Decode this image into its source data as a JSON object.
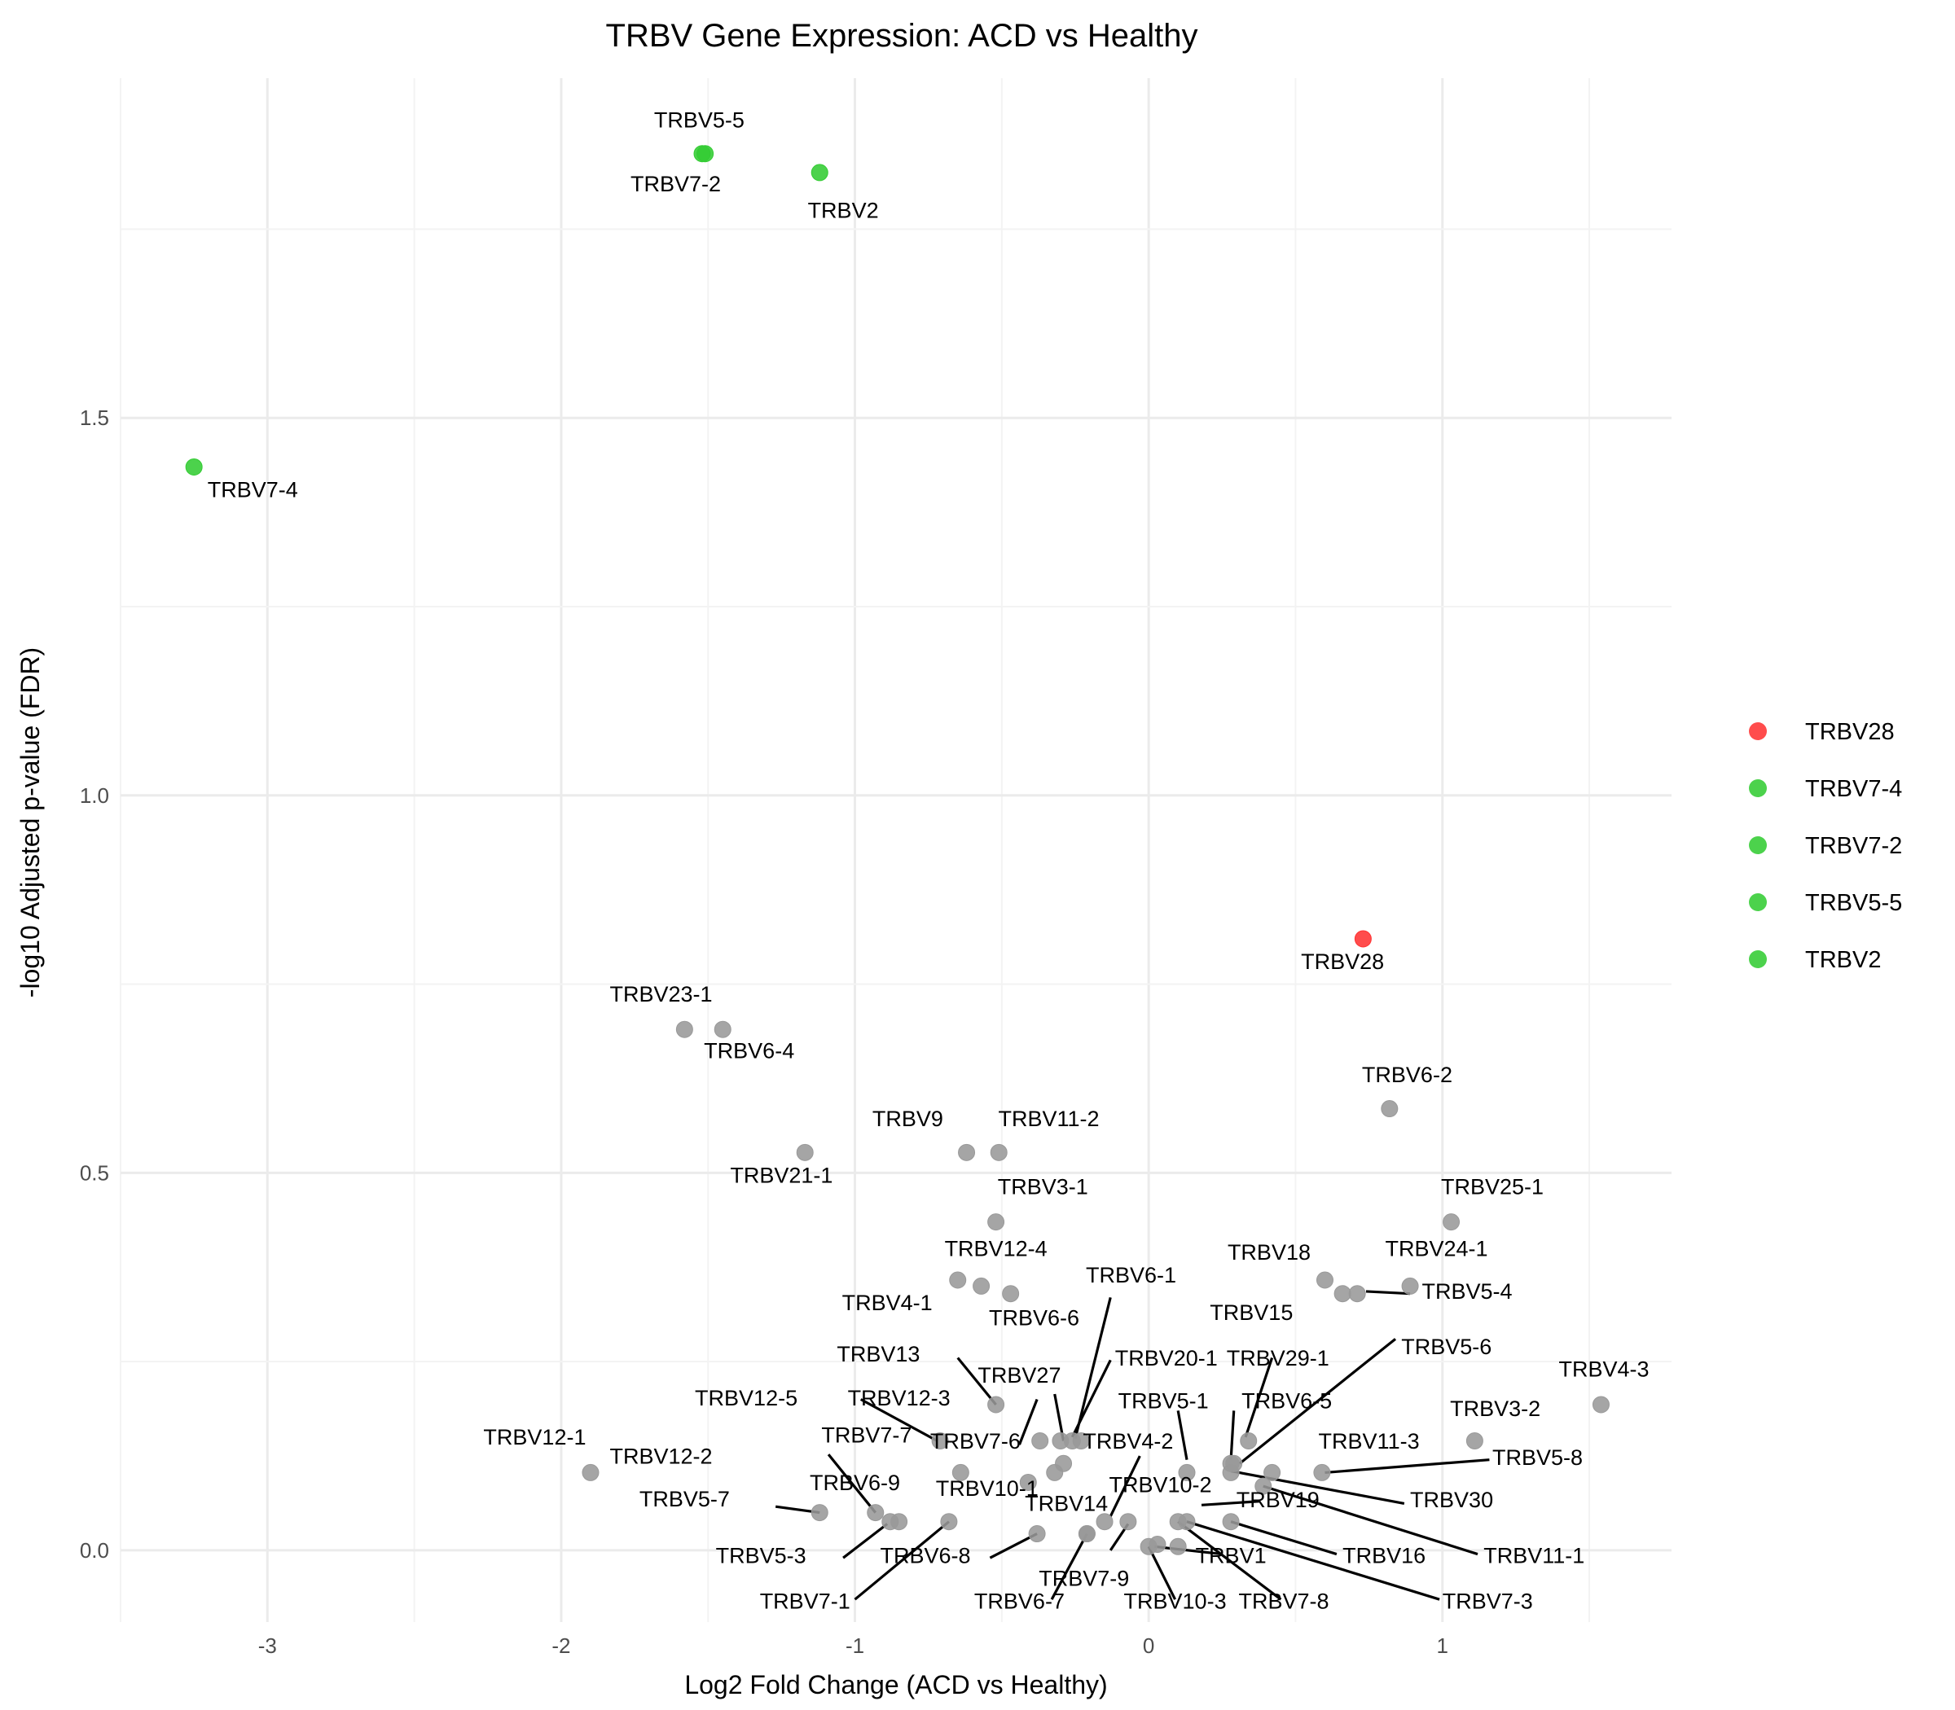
{
  "chart_data": {
    "type": "scatter",
    "title": "TRBV Gene Expression: ACD vs Healthy",
    "xlabel": "Log2 Fold Change (ACD vs Healthy)",
    "ylabel": "-log10 Adjusted p-value (FDR)",
    "xlim": [
      -3.5,
      1.78
    ],
    "ylim": [
      -0.095,
      1.95
    ],
    "xticks": [
      -3,
      -2,
      -1,
      0,
      1
    ],
    "yticks": [
      0.0,
      0.5,
      1.0,
      1.5
    ],
    "grid": true,
    "legend_position": "right",
    "colors": {
      "grey": "#999999",
      "green": "#33cc33",
      "red": "#ff3333",
      "line": "#000000"
    },
    "legend": [
      {
        "label": "TRBV28",
        "color": "#ff3333"
      },
      {
        "label": "TRBV7-4",
        "color": "#33cc33"
      },
      {
        "label": "TRBV7-2",
        "color": "#33cc33"
      },
      {
        "label": "TRBV5-5",
        "color": "#33cc33"
      },
      {
        "label": "TRBV2",
        "color": "#33cc33"
      }
    ],
    "points": [
      {
        "gene": "TRBV5-5",
        "x": -1.52,
        "y": 1.85,
        "group": "green"
      },
      {
        "gene": "TRBV7-2",
        "x": -1.51,
        "y": 1.85,
        "group": "green"
      },
      {
        "gene": "TRBV2",
        "x": -1.12,
        "y": 1.825,
        "group": "green"
      },
      {
        "gene": "TRBV7-4",
        "x": -3.25,
        "y": 1.435,
        "group": "green"
      },
      {
        "gene": "TRBV28",
        "x": 0.73,
        "y": 0.81,
        "group": "red"
      },
      {
        "gene": "TRBV23-1",
        "x": -1.58,
        "y": 0.69,
        "group": "grey"
      },
      {
        "gene": "TRBV6-4",
        "x": -1.45,
        "y": 0.69,
        "group": "grey"
      },
      {
        "gene": "TRBV6-2",
        "x": 0.82,
        "y": 0.585,
        "group": "grey"
      },
      {
        "gene": "TRBV21-1",
        "x": -1.17,
        "y": 0.527,
        "group": "grey"
      },
      {
        "gene": "TRBV9",
        "x": -0.62,
        "y": 0.527,
        "group": "grey"
      },
      {
        "gene": "TRBV11-2",
        "x": -0.51,
        "y": 0.527,
        "group": "grey"
      },
      {
        "gene": "TRBV3-1",
        "x": -0.52,
        "y": 0.435,
        "group": "grey"
      },
      {
        "gene": "TRBV25-1",
        "x": 1.03,
        "y": 0.435,
        "group": "grey"
      },
      {
        "gene": "TRBV12-4",
        "x": -0.57,
        "y": 0.35,
        "group": "grey"
      },
      {
        "gene": "TRBV4-1",
        "x": -0.65,
        "y": 0.358,
        "group": "grey"
      },
      {
        "gene": "TRBV6-6",
        "x": -0.47,
        "y": 0.34,
        "group": "grey"
      },
      {
        "gene": "TRBV18",
        "x": 0.6,
        "y": 0.358,
        "group": "grey"
      },
      {
        "gene": "TRBV15",
        "x": 0.66,
        "y": 0.34,
        "group": "grey"
      },
      {
        "gene": "TRBV24-1",
        "x": 0.71,
        "y": 0.34,
        "group": "grey"
      },
      {
        "gene": "TRBV5-4",
        "x": 0.89,
        "y": 0.35,
        "group": "grey"
      },
      {
        "gene": "TRBV4-3",
        "x": 1.54,
        "y": 0.193,
        "group": "grey"
      },
      {
        "gene": "TRBV13",
        "x": -0.52,
        "y": 0.193,
        "group": "grey"
      },
      {
        "gene": "TRBV3-2",
        "x": 1.11,
        "y": 0.145,
        "group": "grey"
      },
      {
        "gene": "TRBV12-5",
        "x": -0.71,
        "y": 0.145,
        "group": "grey"
      },
      {
        "gene": "TRBV12-3",
        "x": -0.37,
        "y": 0.145,
        "group": "grey"
      },
      {
        "gene": "TRBV27",
        "x": -0.3,
        "y": 0.145,
        "group": "grey"
      },
      {
        "gene": "TRBV6-1",
        "x": -0.26,
        "y": 0.145,
        "group": "grey"
      },
      {
        "gene": "TRBV20-1",
        "x": -0.23,
        "y": 0.145,
        "group": "grey"
      },
      {
        "gene": "TRBV6-5",
        "x": 0.34,
        "y": 0.145,
        "group": "grey"
      },
      {
        "gene": "TRBV29-1",
        "x": 0.28,
        "y": 0.115,
        "group": "grey"
      },
      {
        "gene": "TRBV5-6",
        "x": 0.29,
        "y": 0.115,
        "group": "grey"
      },
      {
        "gene": "TRBV7-6",
        "x": -0.29,
        "y": 0.115,
        "group": "grey"
      },
      {
        "gene": "TRBV5-1",
        "x": 0.13,
        "y": 0.103,
        "group": "grey"
      },
      {
        "gene": "TRBV12-1",
        "x": -1.9,
        "y": 0.103,
        "group": "grey"
      },
      {
        "gene": "TRBV7-7",
        "x": -0.64,
        "y": 0.103,
        "group": "grey"
      },
      {
        "gene": "TRBV4-2",
        "x": -0.32,
        "y": 0.103,
        "group": "grey"
      },
      {
        "gene": "TRBV11-3",
        "x": 0.28,
        "y": 0.103,
        "group": "grey"
      },
      {
        "gene": "TRBV30",
        "x": 0.42,
        "y": 0.103,
        "group": "grey"
      },
      {
        "gene": "TRBV5-8",
        "x": 0.59,
        "y": 0.103,
        "group": "grey"
      },
      {
        "gene": "TRBV19",
        "x": -0.41,
        "y": 0.09,
        "group": "grey"
      },
      {
        "gene": "TRBV11-1",
        "x": 0.39,
        "y": 0.085,
        "group": "grey"
      },
      {
        "gene": "TRBV12-2",
        "x": -0.93,
        "y": 0.05,
        "group": "grey"
      },
      {
        "gene": "TRBV5-7",
        "x": -1.12,
        "y": 0.05,
        "group": "grey"
      },
      {
        "gene": "TRBV6-9",
        "x": -0.88,
        "y": 0.038,
        "group": "grey"
      },
      {
        "gene": "TRBV5-3",
        "x": -0.85,
        "y": 0.038,
        "group": "grey"
      },
      {
        "gene": "TRBV7-1",
        "x": -0.68,
        "y": 0.038,
        "group": "grey"
      },
      {
        "gene": "TRBV10-1",
        "x": -0.15,
        "y": 0.038,
        "group": "grey"
      },
      {
        "gene": "TRBV10-2",
        "x": -0.07,
        "y": 0.038,
        "group": "grey"
      },
      {
        "gene": "TRBV7-8",
        "x": 0.1,
        "y": 0.038,
        "group": "grey"
      },
      {
        "gene": "TRBV7-3",
        "x": 0.13,
        "y": 0.038,
        "group": "grey"
      },
      {
        "gene": "TRBV16",
        "x": 0.28,
        "y": 0.038,
        "group": "grey"
      },
      {
        "gene": "TRBV6-8",
        "x": -0.38,
        "y": 0.022,
        "group": "grey"
      },
      {
        "gene": "TRBV14",
        "x": -0.21,
        "y": 0.022,
        "group": "grey"
      },
      {
        "gene": "TRBV6-7",
        "x": -0.21,
        "y": 0.022,
        "group": "grey"
      },
      {
        "gene": "TRBV10-3",
        "x": 0.0,
        "y": 0.005,
        "group": "grey"
      },
      {
        "gene": "TRBV7-9",
        "x": 0.03,
        "y": 0.008,
        "group": "grey"
      },
      {
        "gene": "TRBV1",
        "x": 0.1,
        "y": 0.005,
        "group": "grey"
      }
    ],
    "labels": [
      {
        "text": "TRBV5-5",
        "x": -1.53,
        "y": 1.885,
        "anchor": "middle"
      },
      {
        "text": "TRBV7-2",
        "x": -1.61,
        "y": 1.8,
        "anchor": "middle"
      },
      {
        "text": "TRBV2",
        "x": -1.04,
        "y": 1.765,
        "anchor": "middle"
      },
      {
        "text": "TRBV7-4",
        "x": -3.05,
        "y": 1.395,
        "anchor": "middle"
      },
      {
        "text": "TRBV28",
        "x": 0.66,
        "y": 0.77,
        "anchor": "middle"
      },
      {
        "text": "TRBV23-1",
        "x": -1.66,
        "y": 0.727,
        "anchor": "middle"
      },
      {
        "text": "TRBV6-4",
        "x": -1.36,
        "y": 0.652,
        "anchor": "middle"
      },
      {
        "text": "TRBV6-2",
        "x": 0.88,
        "y": 0.62,
        "anchor": "middle"
      },
      {
        "text": "TRBV21-1",
        "x": -1.25,
        "y": 0.487,
        "anchor": "middle"
      },
      {
        "text": "TRBV9",
        "x": -0.82,
        "y": 0.562,
        "anchor": "middle"
      },
      {
        "text": "TRBV11-2",
        "x": -0.34,
        "y": 0.562,
        "anchor": "middle"
      },
      {
        "text": "TRBV3-1",
        "x": -0.36,
        "y": 0.472,
        "anchor": "middle"
      },
      {
        "text": "TRBV25-1",
        "x": 1.17,
        "y": 0.472,
        "anchor": "middle"
      },
      {
        "text": "TRBV12-4",
        "x": -0.52,
        "y": 0.39,
        "anchor": "middle"
      },
      {
        "text": "TRBV4-1",
        "x": -0.89,
        "y": 0.318,
        "anchor": "middle"
      },
      {
        "text": "TRBV6-6",
        "x": -0.39,
        "y": 0.298,
        "anchor": "middle"
      },
      {
        "text": "TRBV6-1",
        "x": -0.06,
        "y": 0.355,
        "anchor": "middle"
      },
      {
        "text": "TRBV18",
        "x": 0.41,
        "y": 0.385,
        "anchor": "middle"
      },
      {
        "text": "TRBV15",
        "x": 0.35,
        "y": 0.305,
        "anchor": "middle"
      },
      {
        "text": "TRBV24-1",
        "x": 0.98,
        "y": 0.39,
        "anchor": "middle"
      },
      {
        "text": "TRBV5-4",
        "x": 0.93,
        "y": 0.333,
        "anchor": "start"
      },
      {
        "text": "TRBV5-6",
        "x": 0.86,
        "y": 0.26,
        "anchor": "start"
      },
      {
        "text": "TRBV4-3",
        "x": 1.55,
        "y": 0.23,
        "anchor": "middle"
      },
      {
        "text": "TRBV13",
        "x": -0.92,
        "y": 0.25,
        "anchor": "middle"
      },
      {
        "text": "TRBV27",
        "x": -0.44,
        "y": 0.222,
        "anchor": "middle"
      },
      {
        "text": "TRBV20-1",
        "x": 0.06,
        "y": 0.245,
        "anchor": "middle"
      },
      {
        "text": "TRBV29-1",
        "x": 0.44,
        "y": 0.245,
        "anchor": "middle"
      },
      {
        "text": "TRBV12-5",
        "x": -1.37,
        "y": 0.192,
        "anchor": "middle"
      },
      {
        "text": "TRBV12-3",
        "x": -0.85,
        "y": 0.192,
        "anchor": "middle"
      },
      {
        "text": "TRBV5-1",
        "x": 0.05,
        "y": 0.188,
        "anchor": "middle"
      },
      {
        "text": "TRBV6-5",
        "x": 0.47,
        "y": 0.188,
        "anchor": "middle"
      },
      {
        "text": "TRBV3-2",
        "x": 1.18,
        "y": 0.178,
        "anchor": "middle"
      },
      {
        "text": "TRBV12-1",
        "x": -2.09,
        "y": 0.14,
        "anchor": "middle"
      },
      {
        "text": "TRBV7-7",
        "x": -0.96,
        "y": 0.143,
        "anchor": "middle"
      },
      {
        "text": "TRBV7-6",
        "x": -0.59,
        "y": 0.135,
        "anchor": "middle"
      },
      {
        "text": "TRBV4-2",
        "x": -0.07,
        "y": 0.135,
        "anchor": "middle"
      },
      {
        "text": "TRBV11-3",
        "x": 0.75,
        "y": 0.135,
        "anchor": "middle"
      },
      {
        "text": "TRBV5-8",
        "x": 1.17,
        "y": 0.113,
        "anchor": "start"
      },
      {
        "text": "TRBV12-2",
        "x": -1.66,
        "y": 0.115,
        "anchor": "middle"
      },
      {
        "text": "TRBV6-9",
        "x": -1.0,
        "y": 0.08,
        "anchor": "middle"
      },
      {
        "text": "TRBV10-1",
        "x": -0.55,
        "y": 0.072,
        "anchor": "middle"
      },
      {
        "text": "TRBV10-2",
        "x": 0.04,
        "y": 0.077,
        "anchor": "middle"
      },
      {
        "text": "TRBV19",
        "x": 0.44,
        "y": 0.057,
        "anchor": "middle"
      },
      {
        "text": "TRBV30",
        "x": 0.89,
        "y": 0.057,
        "anchor": "start"
      },
      {
        "text": "TRBV5-7",
        "x": -1.58,
        "y": 0.058,
        "anchor": "middle"
      },
      {
        "text": "TRBV14",
        "x": -0.28,
        "y": 0.052,
        "anchor": "middle"
      },
      {
        "text": "TRBV5-3",
        "x": -1.32,
        "y": -0.017,
        "anchor": "middle"
      },
      {
        "text": "TRBV6-8",
        "x": -0.76,
        "y": -0.017,
        "anchor": "middle"
      },
      {
        "text": "TRBV1",
        "x": 0.28,
        "y": -0.017,
        "anchor": "middle"
      },
      {
        "text": "TRBV16",
        "x": 0.66,
        "y": -0.017,
        "anchor": "start"
      },
      {
        "text": "TRBV11-1",
        "x": 1.14,
        "y": -0.017,
        "anchor": "start"
      },
      {
        "text": "TRBV7-9",
        "x": -0.22,
        "y": -0.047,
        "anchor": "middle"
      },
      {
        "text": "TRBV7-1",
        "x": -1.17,
        "y": -0.077,
        "anchor": "middle"
      },
      {
        "text": "TRBV6-7",
        "x": -0.44,
        "y": -0.077,
        "anchor": "middle"
      },
      {
        "text": "TRBV10-3",
        "x": 0.09,
        "y": -0.077,
        "anchor": "middle"
      },
      {
        "text": "TRBV7-8",
        "x": 0.46,
        "y": -0.077,
        "anchor": "middle"
      },
      {
        "text": "TRBV7-3",
        "x": 1.0,
        "y": -0.077,
        "anchor": "start"
      }
    ],
    "connectors": [
      {
        "from": [
          0.89,
          0.34
        ],
        "to": [
          0.74,
          0.343
        ]
      },
      {
        "from": [
          0.84,
          0.28
        ],
        "to": [
          0.31,
          0.115
        ]
      },
      {
        "from": [
          -0.98,
          0.2
        ],
        "to": [
          -0.72,
          0.145
        ]
      },
      {
        "from": [
          -1.09,
          0.127
        ],
        "to": [
          -0.93,
          0.05
        ]
      },
      {
        "from": [
          -1.27,
          0.058
        ],
        "to": [
          -1.12,
          0.05
        ]
      },
      {
        "from": [
          -1.04,
          -0.01
        ],
        "to": [
          -0.89,
          0.035
        ]
      },
      {
        "from": [
          -1.0,
          -0.065
        ],
        "to": [
          -0.68,
          0.038
        ]
      },
      {
        "from": [
          -0.54,
          -0.01
        ],
        "to": [
          -0.38,
          0.022
        ]
      },
      {
        "from": [
          -0.33,
          -0.065
        ],
        "to": [
          -0.21,
          0.022
        ]
      },
      {
        "from": [
          -0.65,
          0.255
        ],
        "to": [
          -0.52,
          0.193
        ]
      },
      {
        "from": [
          -0.38,
          0.2
        ],
        "to": [
          -0.44,
          0.14
        ]
      },
      {
        "from": [
          -0.32,
          0.207
        ],
        "to": [
          -0.29,
          0.145
        ]
      },
      {
        "from": [
          -0.13,
          0.335
        ],
        "to": [
          -0.25,
          0.148
        ]
      },
      {
        "from": [
          -0.13,
          0.252
        ],
        "to": [
          -0.26,
          0.15
        ]
      },
      {
        "from": [
          0.1,
          0.185
        ],
        "to": [
          0.13,
          0.12
        ]
      },
      {
        "from": [
          0.42,
          0.255
        ],
        "to": [
          0.33,
          0.15
        ]
      },
      {
        "from": [
          0.29,
          0.185
        ],
        "to": [
          0.28,
          0.12
        ]
      },
      {
        "from": [
          1.16,
          0.12
        ],
        "to": [
          0.6,
          0.103
        ]
      },
      {
        "from": [
          -0.03,
          0.125
        ],
        "to": [
          -0.13,
          0.045
        ]
      },
      {
        "from": [
          -0.13,
          0.0
        ],
        "to": [
          -0.07,
          0.035
        ]
      },
      {
        "from": [
          0.38,
          0.065
        ],
        "to": [
          0.18,
          0.06
        ]
      },
      {
        "from": [
          0.87,
          0.062
        ],
        "to": [
          0.28,
          0.105
        ]
      },
      {
        "from": [
          0.64,
          -0.005
        ],
        "to": [
          0.28,
          0.038
        ]
      },
      {
        "from": [
          1.12,
          -0.005
        ],
        "to": [
          0.39,
          0.085
        ]
      },
      {
        "from": [
          0.99,
          -0.065
        ],
        "to": [
          0.13,
          0.038
        ]
      },
      {
        "from": [
          0.45,
          -0.065
        ],
        "to": [
          0.1,
          0.038
        ]
      },
      {
        "from": [
          0.25,
          -0.005
        ],
        "to": [
          0.02,
          0.005
        ]
      },
      {
        "from": [
          0.09,
          -0.065
        ],
        "to": [
          0.0,
          0.005
        ]
      }
    ]
  }
}
